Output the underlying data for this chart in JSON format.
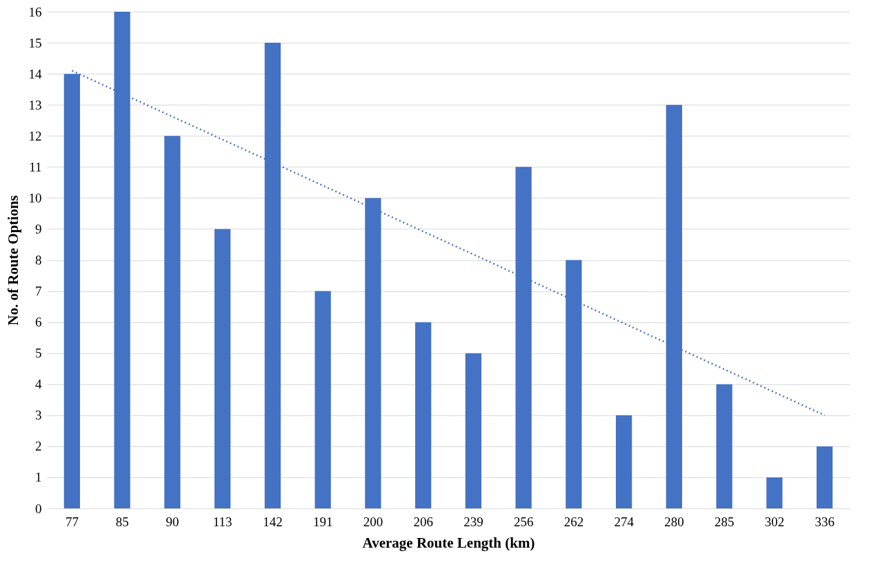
{
  "chart_data": {
    "type": "bar",
    "xlabel": "Average Route Length (km)",
    "ylabel": "No. of Route Options",
    "categories": [
      "77",
      "85",
      "90",
      "113",
      "142",
      "191",
      "200",
      "206",
      "239",
      "256",
      "262",
      "274",
      "280",
      "285",
      "302",
      "336"
    ],
    "series": [
      {
        "color": "#4472c4",
        "values": [
          14,
          16,
          12,
          9,
          15,
          7,
          10,
          6,
          5,
          11,
          8,
          3,
          13,
          4,
          1,
          2
        ]
      },
      {
        "type": "line",
        "color": "#4472c4",
        "line_style": "dotted",
        "x": [
          "77",
          "336"
        ],
        "values": [
          14.1,
          3.0
        ]
      }
    ],
    "ylim": [
      0,
      16
    ],
    "yticks": [
      0,
      1,
      2,
      3,
      4,
      5,
      6,
      7,
      8,
      9,
      10,
      11,
      12,
      13,
      14,
      15,
      16
    ],
    "grid": "y"
  }
}
